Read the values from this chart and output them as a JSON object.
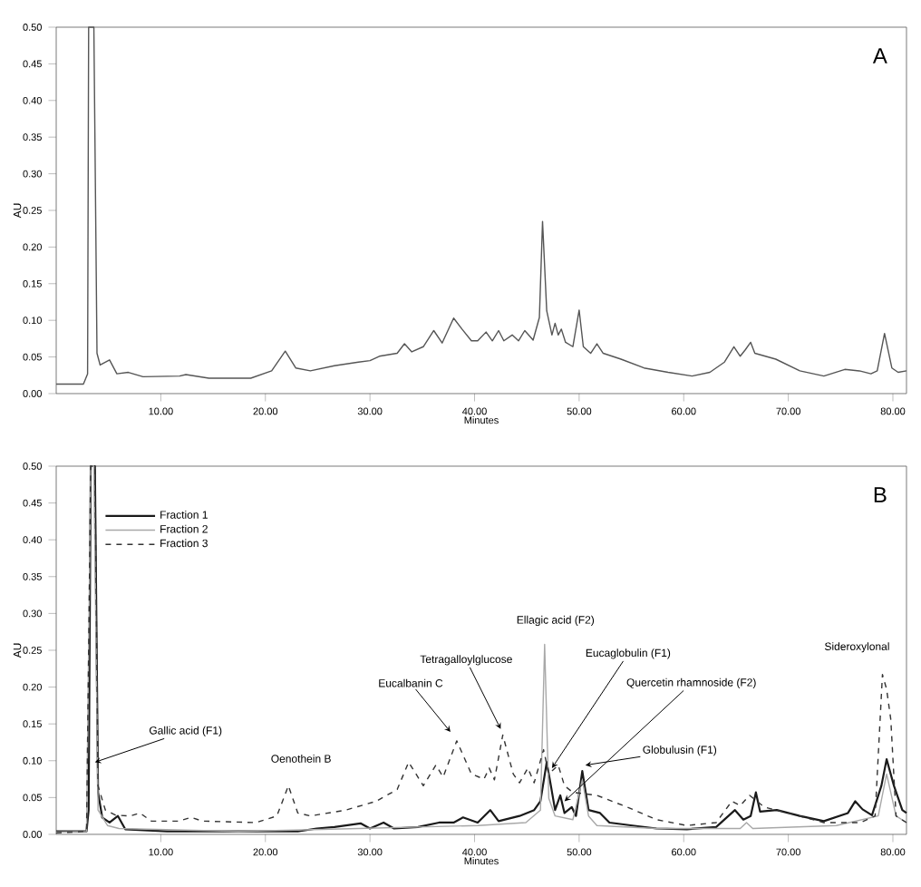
{
  "chart_data": [
    {
      "type": "line",
      "xlabel": "Minutes",
      "ylabel": "AU",
      "xlim": [
        0,
        81.3
      ],
      "ylim": [
        0,
        0.5
      ],
      "xticks": [
        {
          "value": 10,
          "label": "10.00"
        },
        {
          "value": 20,
          "label": "20.00"
        },
        {
          "value": 30,
          "label": "30.00"
        },
        {
          "value": 40,
          "label": "40.00"
        },
        {
          "value": 50,
          "label": "50.00"
        },
        {
          "value": 60,
          "label": "60.00"
        },
        {
          "value": 70,
          "label": "70.00"
        },
        {
          "value": 80,
          "label": "80.00"
        }
      ],
      "yticks": [
        {
          "value": 0,
          "label": "0.00"
        },
        {
          "value": 0.05,
          "label": "0.05"
        },
        {
          "value": 0.1,
          "label": "0.10"
        },
        {
          "value": 0.15,
          "label": "0.15"
        },
        {
          "value": 0.2,
          "label": "0.20"
        },
        {
          "value": 0.25,
          "label": "0.25"
        },
        {
          "value": 0.3,
          "label": "0.30"
        },
        {
          "value": 0.35,
          "label": "0.35"
        },
        {
          "value": 0.4,
          "label": "0.40"
        },
        {
          "value": 0.45,
          "label": "0.45"
        },
        {
          "value": 0.5,
          "label": "0.50"
        }
      ],
      "annotations": [
        "A"
      ],
      "series": [
        {
          "color": "#555555",
          "line_style": "solid",
          "x": [
            0,
            2.6,
            3.0,
            3.1,
            3.6,
            3.9,
            4.2,
            5.1,
            5.8,
            6.9,
            8.3,
            11.8,
            12.4,
            14.6,
            18.6,
            20.6,
            21.9,
            22.9,
            24.3,
            26.6,
            28.9,
            30.0,
            30.9,
            32.6,
            33.3,
            34.0,
            35.1,
            36.1,
            36.9,
            38.0,
            38.8,
            39.7,
            40.3,
            41.1,
            41.7,
            42.3,
            42.8,
            43.6,
            44.2,
            44.8,
            45.6,
            46.2,
            46.5,
            46.9,
            47.4,
            47.7,
            48.0,
            48.3,
            48.7,
            49.4,
            50.0,
            50.4,
            51.1,
            51.7,
            52.3,
            54.0,
            56.2,
            58.5,
            60.8,
            62.5,
            63.9,
            64.8,
            65.4,
            65.9,
            66.4,
            66.8,
            68.8,
            71.1,
            73.4,
            75.4,
            76.8,
            77.9,
            78.5,
            79.2,
            79.9,
            80.5,
            81.3
          ],
          "values": [
            0.013,
            0.013,
            0.027,
            0.5,
            0.5,
            0.055,
            0.039,
            0.046,
            0.027,
            0.029,
            0.023,
            0.024,
            0.026,
            0.021,
            0.021,
            0.031,
            0.058,
            0.035,
            0.031,
            0.038,
            0.043,
            0.045,
            0.051,
            0.055,
            0.068,
            0.057,
            0.064,
            0.086,
            0.069,
            0.103,
            0.088,
            0.072,
            0.072,
            0.084,
            0.072,
            0.086,
            0.072,
            0.08,
            0.072,
            0.086,
            0.073,
            0.104,
            0.235,
            0.113,
            0.08,
            0.096,
            0.08,
            0.088,
            0.07,
            0.064,
            0.114,
            0.064,
            0.055,
            0.068,
            0.055,
            0.047,
            0.035,
            0.029,
            0.024,
            0.029,
            0.043,
            0.064,
            0.051,
            0.06,
            0.07,
            0.055,
            0.047,
            0.031,
            0.024,
            0.033,
            0.031,
            0.027,
            0.031,
            0.082,
            0.035,
            0.029,
            0.031
          ]
        }
      ]
    },
    {
      "type": "line",
      "xlabel": "Minutes",
      "ylabel": "AU",
      "xlim": [
        0,
        81.3
      ],
      "ylim": [
        0,
        0.5
      ],
      "legend": "top left",
      "xticks": [
        {
          "value": 10,
          "label": "10.00"
        },
        {
          "value": 20,
          "label": "20.00"
        },
        {
          "value": 30,
          "label": "30.00"
        },
        {
          "value": 40,
          "label": "40.00"
        },
        {
          "value": 50,
          "label": "50.00"
        },
        {
          "value": 60,
          "label": "60.00"
        },
        {
          "value": 70,
          "label": "70.00"
        },
        {
          "value": 80,
          "label": "80.00"
        }
      ],
      "yticks": [
        {
          "value": 0,
          "label": "0.00"
        },
        {
          "value": 0.05,
          "label": "0.05"
        },
        {
          "value": 0.1,
          "label": "0.10"
        },
        {
          "value": 0.15,
          "label": "0.15"
        },
        {
          "value": 0.2,
          "label": "0.20"
        },
        {
          "value": 0.25,
          "label": "0.25"
        },
        {
          "value": 0.3,
          "label": "0.30"
        },
        {
          "value": 0.35,
          "label": "0.35"
        },
        {
          "value": 0.4,
          "label": "0.40"
        },
        {
          "value": 0.45,
          "label": "0.45"
        },
        {
          "value": 0.5,
          "label": "0.50"
        }
      ],
      "annotations": [
        "B",
        {
          "text": "Gallic acid (F1)",
          "x": 3.7,
          "y": 0.098
        },
        {
          "text": "Oenothein B",
          "x": 22.2,
          "y": 0.066
        },
        {
          "text": "Eucalbanin C",
          "x": 37.7,
          "y": 0.139
        },
        {
          "text": "Tetragalloylglucose",
          "x": 42.5,
          "y": 0.143
        },
        {
          "text": "Ellagic acid (F2)",
          "x": 46.7,
          "y": 0.258
        },
        {
          "text": "Eucaglobulin (F1)",
          "x": 47.4,
          "y": 0.09
        },
        {
          "text": "Quercetin rhamnoside (F2)",
          "x": 48.6,
          "y": 0.045
        },
        {
          "text": "Globulusin (F1)",
          "x": 50.6,
          "y": 0.094
        },
        {
          "text": "Sideroxylonal",
          "x": 79.0,
          "y": 0.217
        }
      ],
      "series": [
        {
          "name": "Fraction 1",
          "color": "#1a1a1a",
          "line_style": "solid",
          "x": [
            0,
            2.9,
            3.1,
            3.3,
            3.7,
            4.0,
            4.4,
            5.1,
            5.9,
            6.6,
            10.6,
            17.4,
            23.1,
            24.9,
            26.6,
            29.1,
            30.0,
            31.3,
            32.3,
            34.6,
            36.6,
            38.0,
            38.9,
            40.3,
            41.5,
            42.3,
            44.3,
            45.7,
            46.3,
            46.9,
            47.3,
            47.7,
            48.2,
            48.6,
            49.3,
            49.7,
            50.3,
            50.9,
            52.0,
            52.9,
            55.1,
            57.4,
            60.3,
            63.1,
            64.9,
            65.7,
            66.4,
            66.9,
            67.3,
            68.9,
            71.1,
            73.4,
            75.7,
            76.4,
            77.1,
            78.0,
            78.9,
            79.4,
            80.1,
            80.9,
            81.3
          ],
          "values": [
            0.004,
            0.004,
            0.033,
            0.5,
            0.5,
            0.057,
            0.023,
            0.016,
            0.025,
            0.007,
            0.004,
            0.004,
            0.004,
            0.008,
            0.01,
            0.015,
            0.008,
            0.016,
            0.008,
            0.01,
            0.016,
            0.016,
            0.023,
            0.016,
            0.033,
            0.018,
            0.025,
            0.033,
            0.045,
            0.098,
            0.066,
            0.033,
            0.053,
            0.029,
            0.037,
            0.025,
            0.086,
            0.033,
            0.029,
            0.016,
            0.012,
            0.008,
            0.007,
            0.01,
            0.033,
            0.02,
            0.025,
            0.057,
            0.031,
            0.033,
            0.025,
            0.018,
            0.029,
            0.045,
            0.034,
            0.026,
            0.066,
            0.102,
            0.066,
            0.033,
            0.029
          ]
        },
        {
          "name": "Fraction 2",
          "color": "#a8a8a8",
          "line_style": "solid",
          "x": [
            0,
            2.9,
            3.3,
            3.6,
            4.0,
            4.9,
            6.0,
            17.4,
            28.9,
            40.3,
            44.9,
            46.3,
            46.7,
            47.1,
            47.7,
            49.4,
            50.3,
            50.9,
            51.7,
            57.4,
            65.4,
            66.0,
            66.6,
            74.6,
            78.6,
            79.4,
            80.3,
            81.3
          ],
          "values": [
            0.003,
            0.004,
            0.5,
            0.5,
            0.033,
            0.012,
            0.008,
            0.004,
            0.008,
            0.012,
            0.016,
            0.033,
            0.258,
            0.049,
            0.025,
            0.02,
            0.074,
            0.025,
            0.012,
            0.008,
            0.008,
            0.016,
            0.008,
            0.012,
            0.025,
            0.082,
            0.025,
            0.016
          ]
        },
        {
          "name": "Fraction 3",
          "color": "#333333",
          "line_style": "dashed",
          "x": [
            0,
            2.9,
            3.3,
            3.7,
            4.0,
            4.7,
            5.7,
            7.1,
            8.0,
            9.1,
            11.7,
            12.9,
            14.0,
            19.1,
            21.1,
            22.2,
            23.1,
            24.3,
            27.7,
            30.6,
            32.6,
            33.7,
            35.1,
            36.3,
            37.0,
            38.3,
            39.7,
            40.9,
            41.4,
            41.9,
            42.7,
            43.7,
            44.3,
            45.1,
            45.7,
            46.6,
            47.1,
            48.0,
            48.6,
            49.4,
            51.7,
            54.6,
            57.4,
            60.3,
            63.1,
            64.6,
            65.4,
            66.3,
            67.7,
            70.0,
            73.4,
            76.9,
            78.3,
            79.0,
            79.4,
            79.8,
            80.3,
            81.3
          ],
          "values": [
            0.002,
            0.004,
            0.5,
            0.5,
            0.066,
            0.033,
            0.026,
            0.025,
            0.029,
            0.018,
            0.018,
            0.023,
            0.018,
            0.016,
            0.025,
            0.066,
            0.029,
            0.025,
            0.033,
            0.045,
            0.061,
            0.098,
            0.066,
            0.094,
            0.078,
            0.127,
            0.082,
            0.075,
            0.09,
            0.074,
            0.135,
            0.082,
            0.07,
            0.09,
            0.07,
            0.115,
            0.082,
            0.094,
            0.066,
            0.057,
            0.053,
            0.037,
            0.02,
            0.012,
            0.016,
            0.045,
            0.039,
            0.053,
            0.037,
            0.029,
            0.016,
            0.016,
            0.025,
            0.217,
            0.197,
            0.156,
            0.025,
            0.016
          ]
        }
      ]
    }
  ]
}
